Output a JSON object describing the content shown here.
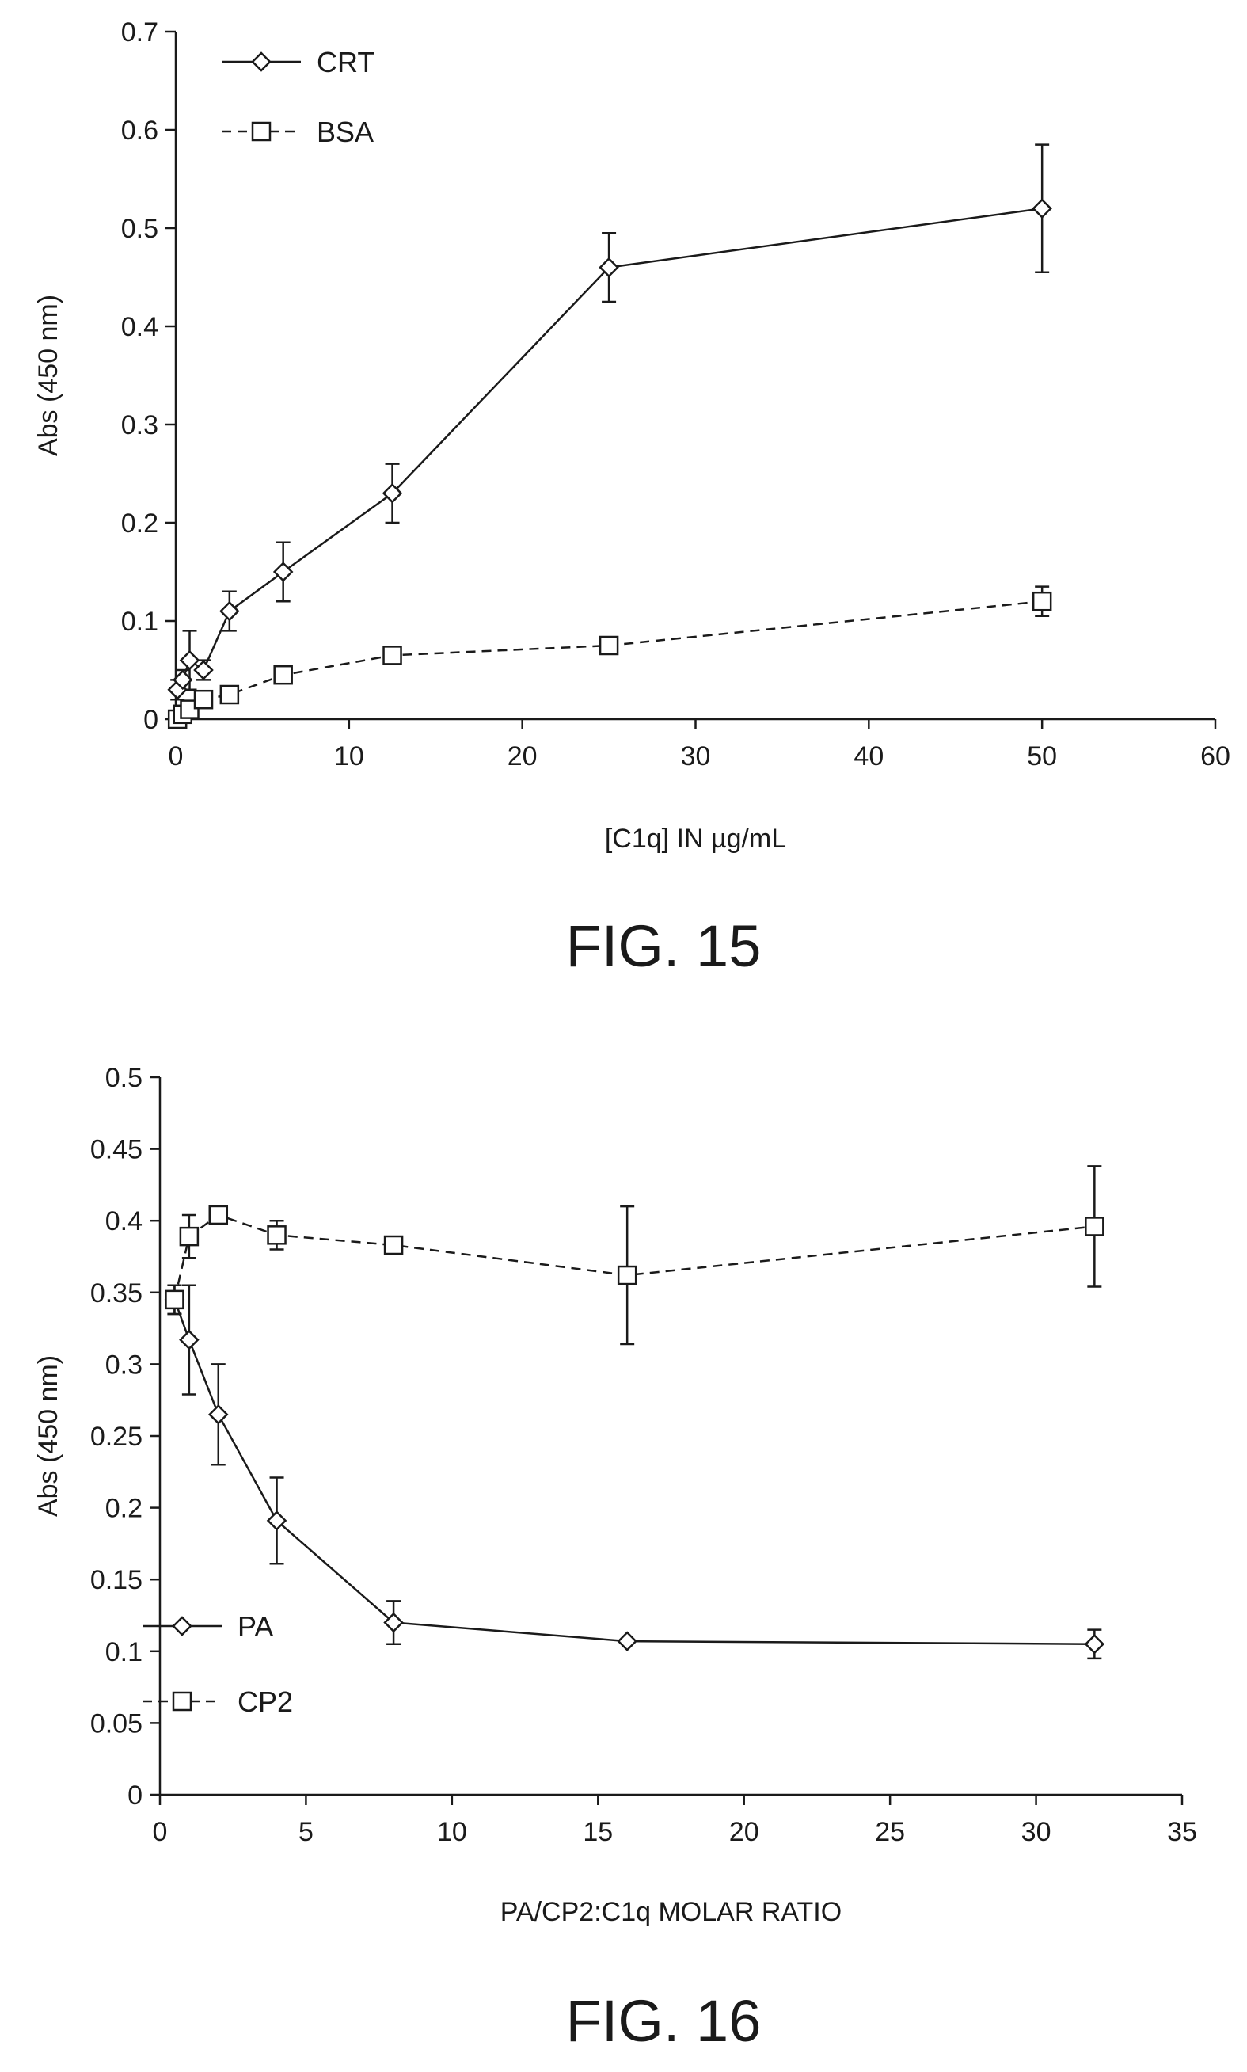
{
  "figures": [
    {
      "caption": "FIG. 15",
      "chart_data": {
        "type": "line",
        "xlabel": "[C1q] IN µg/mL",
        "ylabel": "Abs (450 nm)",
        "xlim": [
          0,
          60
        ],
        "ylim": [
          0,
          0.7
        ],
        "x_ticks": [
          "0",
          "10",
          "20",
          "30",
          "40",
          "50",
          "60"
        ],
        "y_ticks": [
          "0",
          "0.1",
          "0.2",
          "0.3",
          "0.4",
          "0.5",
          "0.6",
          "0.7"
        ],
        "grid": false,
        "legend_position": "top-left",
        "series": [
          {
            "name": "CRT",
            "marker": "diamond",
            "line": "solid",
            "x": [
              0.1,
              0.4,
              0.8,
              1.6,
              3.1,
              6.2,
              12.5,
              25,
              50
            ],
            "y": [
              0.03,
              0.04,
              0.06,
              0.05,
              0.11,
              0.15,
              0.23,
              0.46,
              0.52
            ],
            "err": [
              0.01,
              0.01,
              0.03,
              0.01,
              0.02,
              0.03,
              0.03,
              0.035,
              0.065
            ]
          },
          {
            "name": "BSA",
            "marker": "square",
            "line": "dashed",
            "x": [
              0.1,
              0.4,
              0.8,
              1.6,
              3.1,
              6.2,
              12.5,
              25,
              50
            ],
            "y": [
              0.0,
              0.005,
              0.01,
              0.02,
              0.025,
              0.045,
              0.065,
              0.075,
              0.12
            ],
            "err": [
              0,
              0,
              0,
              0,
              0,
              0,
              0,
              0,
              0.015
            ]
          }
        ]
      }
    },
    {
      "caption": "FIG. 16",
      "chart_data": {
        "type": "line",
        "xlabel": "PA/CP2:C1q MOLAR RATIO",
        "ylabel": "Abs (450 nm)",
        "xlim": [
          0,
          35
        ],
        "ylim": [
          0,
          0.5
        ],
        "x_ticks": [
          "0",
          "5",
          "10",
          "15",
          "20",
          "25",
          "30",
          "35"
        ],
        "y_ticks": [
          "0",
          "0.05",
          "0.1",
          "0.15",
          "0.2",
          "0.25",
          "0.3",
          "0.35",
          "0.4",
          "0.45",
          "0.5"
        ],
        "grid": false,
        "legend_position": "bottom-left",
        "series": [
          {
            "name": "PA",
            "marker": "diamond",
            "line": "solid",
            "x": [
              0.5,
              1,
              2,
              4,
              8,
              16,
              32
            ],
            "y": [
              0.345,
              0.317,
              0.265,
              0.191,
              0.12,
              0.107,
              0.105
            ],
            "err": [
              0.01,
              0.038,
              0.035,
              0.03,
              0.015,
              0,
              0.01
            ]
          },
          {
            "name": "CP2",
            "marker": "square",
            "line": "dashed",
            "x": [
              0.5,
              1,
              2,
              4,
              8,
              16,
              32
            ],
            "y": [
              0.345,
              0.389,
              0.404,
              0.39,
              0.383,
              0.362,
              0.396
            ],
            "err": [
              0.01,
              0.015,
              0,
              0.01,
              0,
              0.048,
              0.042
            ]
          }
        ]
      }
    }
  ]
}
